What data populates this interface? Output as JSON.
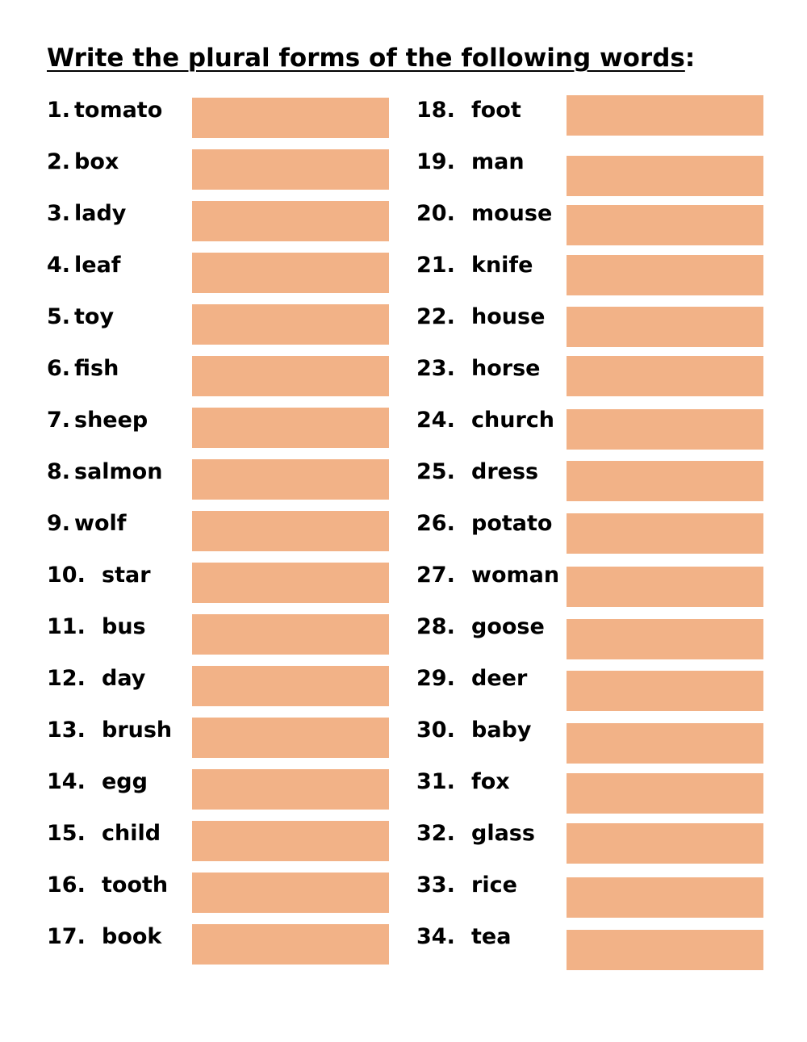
{
  "worksheet": {
    "instruction_text": "Write the plural forms of the following words",
    "instruction_colon": ":",
    "answer_box_color": "#f2b287",
    "items": [
      {
        "number": "1.",
        "word": "tomato",
        "answer": ""
      },
      {
        "number": "2.",
        "word": "box",
        "answer": ""
      },
      {
        "number": "3.",
        "word": "lady",
        "answer": ""
      },
      {
        "number": "4.",
        "word": "leaf",
        "answer": ""
      },
      {
        "number": "5.",
        "word": "toy",
        "answer": ""
      },
      {
        "number": "6.",
        "word": "fish",
        "answer": ""
      },
      {
        "number": "7.",
        "word": "sheep",
        "answer": ""
      },
      {
        "number": "8.",
        "word": "salmon",
        "answer": ""
      },
      {
        "number": "9.",
        "word": "wolf",
        "answer": ""
      },
      {
        "number": "10.",
        "word": "star",
        "answer": ""
      },
      {
        "number": "11.",
        "word": "bus",
        "answer": ""
      },
      {
        "number": "12.",
        "word": "day",
        "answer": ""
      },
      {
        "number": "13.",
        "word": "brush",
        "answer": ""
      },
      {
        "number": "14.",
        "word": "egg",
        "answer": ""
      },
      {
        "number": "15.",
        "word": "child",
        "answer": ""
      },
      {
        "number": "16.",
        "word": "tooth",
        "answer": ""
      },
      {
        "number": "17.",
        "word": "book",
        "answer": ""
      },
      {
        "number": "18.",
        "word": "foot",
        "answer": ""
      },
      {
        "number": "19.",
        "word": "man",
        "answer": ""
      },
      {
        "number": "20.",
        "word": "mouse",
        "answer": ""
      },
      {
        "number": "21.",
        "word": "knife",
        "answer": ""
      },
      {
        "number": "22.",
        "word": "house",
        "answer": ""
      },
      {
        "number": "23.",
        "word": "horse",
        "answer": ""
      },
      {
        "number": "24.",
        "word": "church",
        "answer": ""
      },
      {
        "number": "25.",
        "word": "dress",
        "answer": ""
      },
      {
        "number": "26.",
        "word": "potato",
        "answer": ""
      },
      {
        "number": "27.",
        "word": "woman",
        "answer": ""
      },
      {
        "number": "28.",
        "word": "goose",
        "answer": ""
      },
      {
        "number": "29.",
        "word": "deer",
        "answer": ""
      },
      {
        "number": "30.",
        "word": "baby",
        "answer": ""
      },
      {
        "number": "31.",
        "word": "fox",
        "answer": ""
      },
      {
        "number": "32.",
        "word": "glass",
        "answer": ""
      },
      {
        "number": "33.",
        "word": "rice",
        "answer": ""
      },
      {
        "number": "34.",
        "word": "tea",
        "answer": ""
      }
    ]
  }
}
